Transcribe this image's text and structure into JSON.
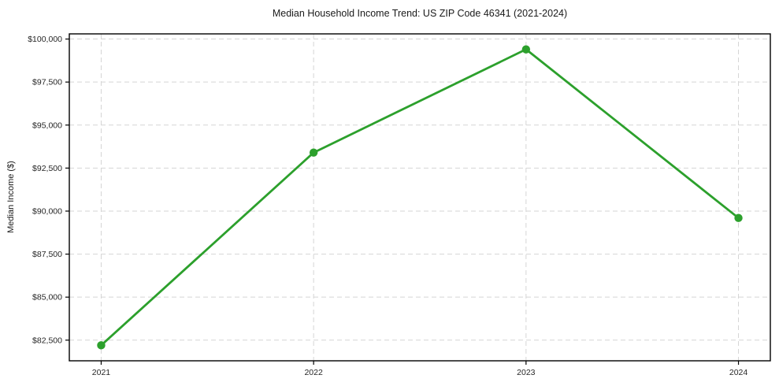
{
  "figure": {
    "title": "Median Household Income Trend: US ZIP Code 46341 (2021-2024)",
    "ylabel": "Median Income ($)"
  },
  "chart_data": {
    "type": "line",
    "title": "Median Household Income Trend: US ZIP Code 46341 (2021-2024)",
    "xlabel": "",
    "ylabel": "Median Income ($)",
    "x": [
      2021,
      2022,
      2023,
      2024
    ],
    "series": [
      {
        "name": "Median Household Income",
        "values": [
          82200,
          93400,
          99400,
          89600
        ]
      }
    ],
    "x_tick_labels": [
      "2021",
      "2022",
      "2023",
      "2024"
    ],
    "y_ticks": [
      82500,
      85000,
      87500,
      90000,
      92500,
      95000,
      97500,
      100000
    ],
    "y_tick_labels": [
      "$82,500",
      "$85,000",
      "$87,500",
      "$90,000",
      "$92,500",
      "$95,000",
      "$97,500",
      "$100,000"
    ],
    "xlim": [
      2020.85,
      2024.15
    ],
    "ylim": [
      81300,
      100300
    ],
    "grid": true,
    "grid_style": "dashed",
    "legend": null,
    "colors": {
      "line": "#2ca02c",
      "marker": "#2ca02c",
      "grid": "#d5d5d5",
      "spine": "#000000",
      "text": "#262626",
      "background": "#ffffff"
    }
  }
}
